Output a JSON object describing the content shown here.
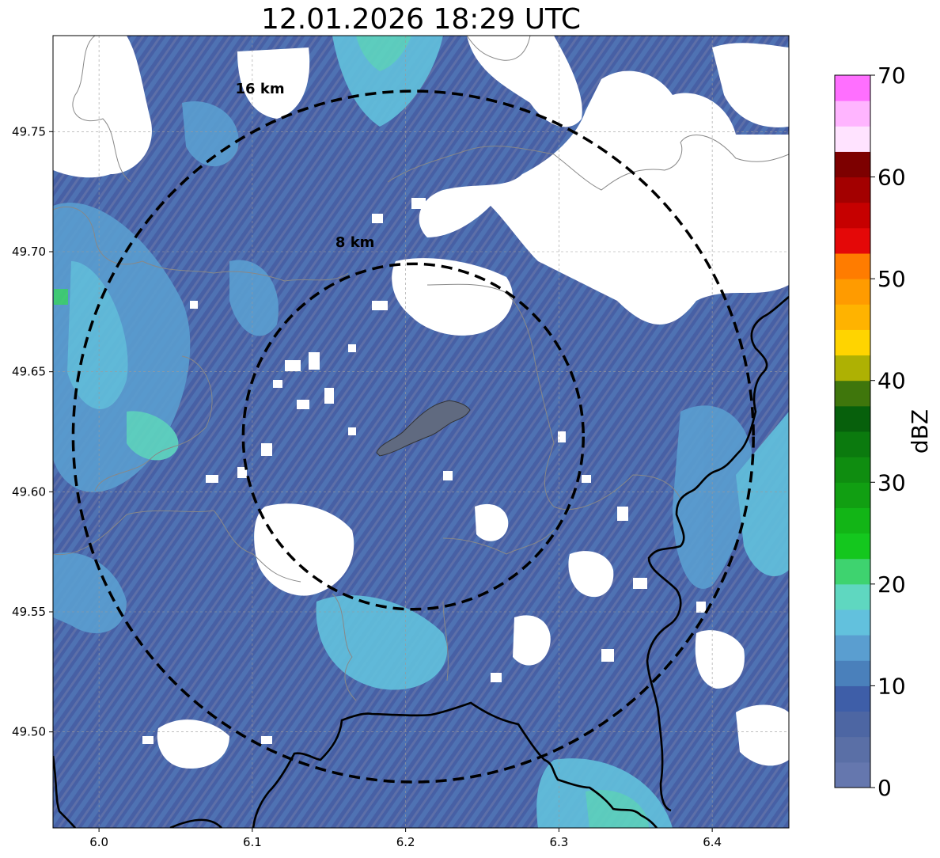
{
  "title": "12.01.2026 18:29 UTC",
  "map": {
    "lon_range": [
      5.97,
      6.45
    ],
    "lat_range": [
      49.46,
      49.79
    ],
    "center": {
      "lon": 6.205,
      "lat": 49.623
    },
    "rings": [
      {
        "label": "8 km",
        "radius_km": 8,
        "label_lon": 6.167,
        "label_lat": 49.702
      },
      {
        "label": "16 km",
        "radius_km": 16,
        "label_lon": 6.105,
        "label_lat": 49.766
      }
    ],
    "x_ticks": [
      {
        "value": 6.0,
        "label": "6.0"
      },
      {
        "value": 6.1,
        "label": "6.1"
      },
      {
        "value": 6.2,
        "label": "6.2"
      },
      {
        "value": 6.3,
        "label": "6.3"
      },
      {
        "value": 6.4,
        "label": "6.4"
      }
    ],
    "y_ticks": [
      {
        "value": 49.75,
        "label": "49.75"
      },
      {
        "value": 49.7,
        "label": "49.70"
      },
      {
        "value": 49.65,
        "label": "49.65"
      },
      {
        "value": 49.6,
        "label": "49.60"
      },
      {
        "value": 49.55,
        "label": "49.55"
      },
      {
        "value": 49.5,
        "label": "49.50"
      }
    ],
    "grid": true
  },
  "colorbar": {
    "label": "dBZ",
    "min": 0,
    "max": 70,
    "step": 2.5,
    "ticks": [
      {
        "value": 0,
        "label": "0"
      },
      {
        "value": 10,
        "label": "10"
      },
      {
        "value": 20,
        "label": "20"
      },
      {
        "value": 30,
        "label": "30"
      },
      {
        "value": 40,
        "label": "40"
      },
      {
        "value": 50,
        "label": "50"
      },
      {
        "value": 60,
        "label": "60"
      },
      {
        "value": 70,
        "label": "70"
      }
    ],
    "colors": [
      "#6577ae",
      "#5a6fa6",
      "#4d66a3",
      "#3e5ea8",
      "#4a80bb",
      "#5a9ed0",
      "#62c1dd",
      "#5fd7c0",
      "#3ed36f",
      "#14c71e",
      "#12b516",
      "#119f12",
      "#0f8d10",
      "#0b7a0e",
      "#07600c",
      "#3f760c",
      "#aeb103",
      "#ffd400",
      "#ffb300",
      "#ff9b00",
      "#ff7c00",
      "#e40808",
      "#c60000",
      "#a30000",
      "#7d0000",
      "#ffe3ff",
      "#ffb5ff",
      "#ff6fff",
      "#eb31eb"
    ]
  },
  "colors": {
    "base_echo": "#4a62a6",
    "clear": "#ffffff",
    "city_fill": "#606a80"
  }
}
